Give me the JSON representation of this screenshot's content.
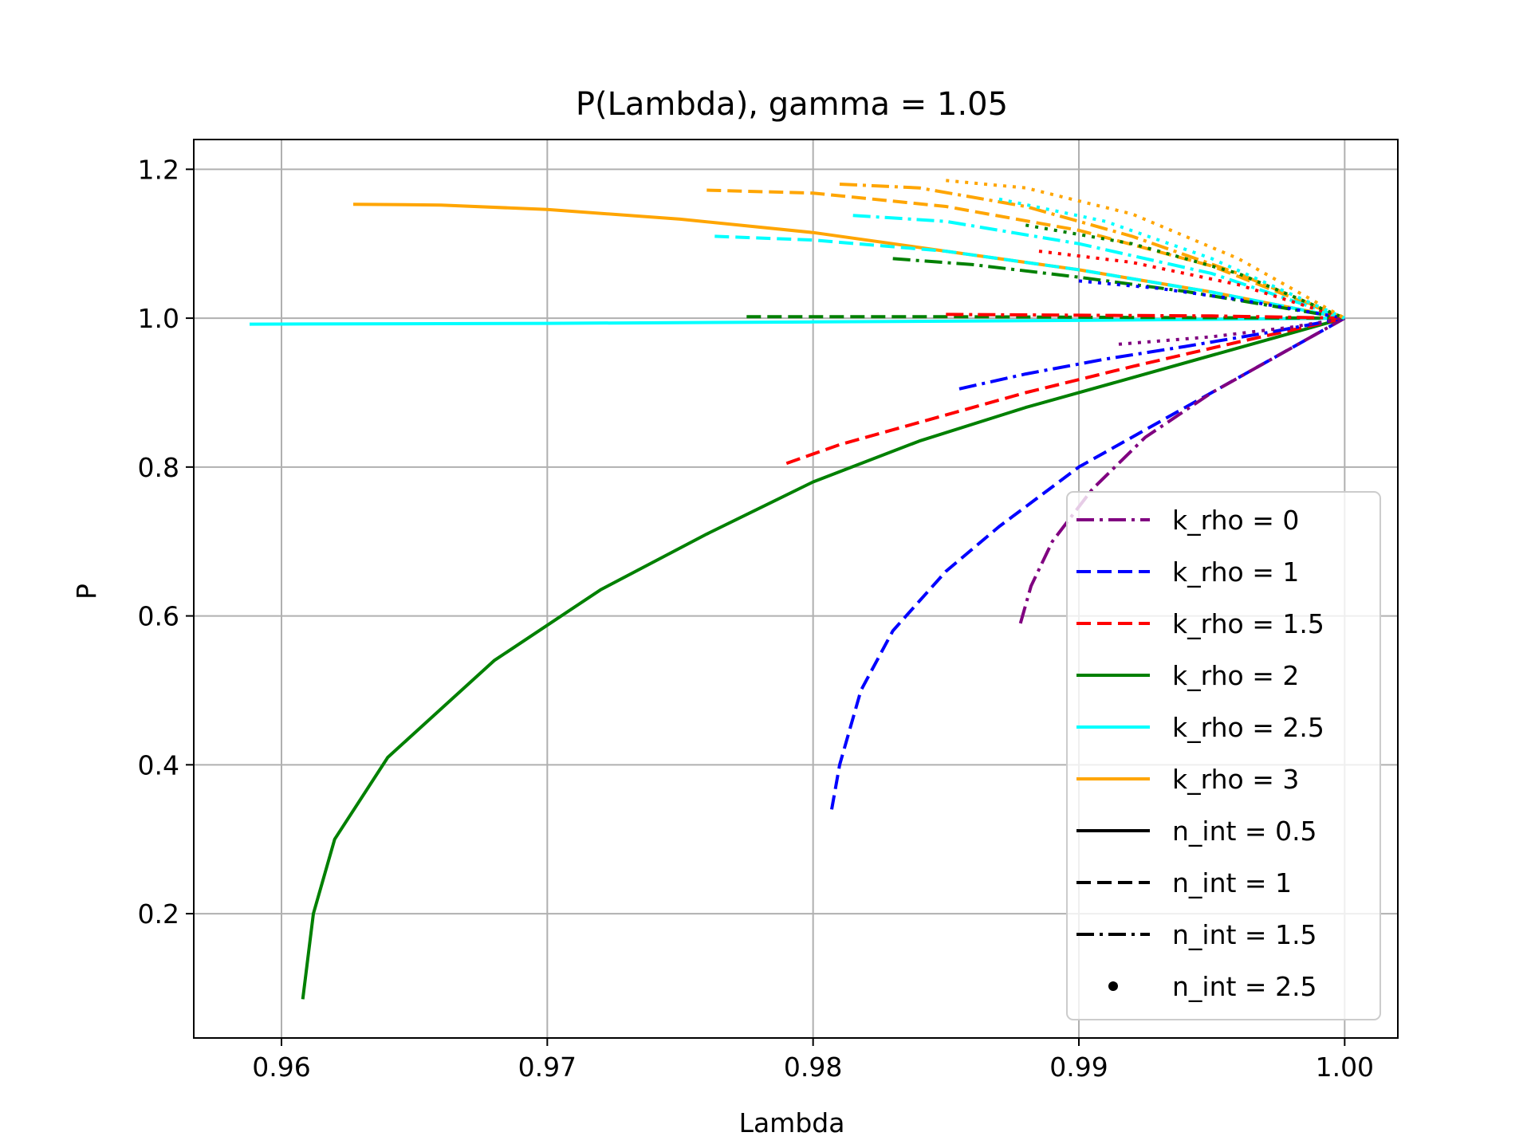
{
  "chart_data": {
    "type": "line",
    "title": "P(Lambda), gamma = 1.05",
    "xlabel": "Lambda",
    "ylabel": "P",
    "xlim": [
      0.9567,
      1.002
    ],
    "ylim": [
      0.033,
      1.24
    ],
    "xticks": [
      0.96,
      0.97,
      0.98,
      0.99,
      1.0
    ],
    "xtick_labels": [
      "0.96",
      "0.97",
      "0.98",
      "0.99",
      "1.00"
    ],
    "yticks": [
      0.2,
      0.4,
      0.6,
      0.8,
      1.0,
      1.2
    ],
    "ytick_labels": [
      "0.2",
      "0.4",
      "0.6",
      "0.8",
      "1.0",
      "1.2"
    ],
    "grid": true,
    "legend_position": "lower-right",
    "legend": [
      {
        "label": "k_rho = 0",
        "color": "#800080",
        "style": "dashdot"
      },
      {
        "label": "k_rho = 1",
        "color": "#0000ff",
        "style": "dashed"
      },
      {
        "label": "k_rho = 1.5",
        "color": "#ff0000",
        "style": "dashed"
      },
      {
        "label": "k_rho = 2",
        "color": "#008000",
        "style": "solid"
      },
      {
        "label": "k_rho = 2.5",
        "color": "#00ffff",
        "style": "solid"
      },
      {
        "label": "k_rho = 3",
        "color": "#ffa500",
        "style": "solid"
      },
      {
        "label": "n_int = 0.5",
        "color": "#000000",
        "style": "solid"
      },
      {
        "label": "n_int = 1",
        "color": "#000000",
        "style": "dashed"
      },
      {
        "label": "n_int = 1.5",
        "color": "#000000",
        "style": "dashdot"
      },
      {
        "label": "n_int = 2.5",
        "color": "#000000",
        "style": "dot"
      }
    ],
    "series": [
      {
        "k_rho": 2,
        "n_int": 0.5,
        "color": "#008000",
        "style": "solid",
        "x": [
          0.9608,
          0.9612,
          0.962,
          0.964,
          0.968,
          0.972,
          0.976,
          0.98,
          0.984,
          0.988,
          0.992,
          0.996,
          1.0
        ],
        "y": [
          0.085,
          0.2,
          0.3,
          0.41,
          0.54,
          0.635,
          0.71,
          0.78,
          0.835,
          0.88,
          0.92,
          0.96,
          1.0
        ]
      },
      {
        "k_rho": 2.5,
        "n_int": 0.5,
        "color": "#00ffff",
        "style": "solid",
        "x": [
          0.9588,
          0.97,
          0.98,
          0.99,
          1.0
        ],
        "y": [
          0.992,
          0.993,
          0.995,
          0.997,
          1.0
        ]
      },
      {
        "k_rho": 3,
        "n_int": 0.5,
        "color": "#ffa500",
        "style": "solid",
        "x": [
          0.9627,
          0.966,
          0.97,
          0.975,
          0.98,
          0.985,
          0.99,
          0.995,
          1.0
        ],
        "y": [
          1.153,
          1.152,
          1.146,
          1.133,
          1.115,
          1.09,
          1.065,
          1.035,
          1.0
        ]
      },
      {
        "k_rho": 1,
        "n_int": 1,
        "color": "#0000ff",
        "style": "dashed",
        "x": [
          0.9807,
          0.981,
          0.9818,
          0.983,
          0.985,
          0.987,
          0.99,
          0.994,
          0.997,
          1.0
        ],
        "y": [
          0.34,
          0.4,
          0.5,
          0.58,
          0.66,
          0.72,
          0.8,
          0.88,
          0.94,
          1.0
        ]
      },
      {
        "k_rho": 1.5,
        "n_int": 1,
        "color": "#ff0000",
        "style": "dashed",
        "x": [
          0.979,
          0.981,
          0.984,
          0.988,
          0.992,
          0.996,
          1.0
        ],
        "y": [
          0.805,
          0.83,
          0.86,
          0.9,
          0.935,
          0.968,
          1.0
        ]
      },
      {
        "k_rho": 2,
        "n_int": 1,
        "color": "#008000",
        "style": "dashed",
        "x": [
          0.9775,
          0.985,
          0.992,
          1.0
        ],
        "y": [
          1.002,
          1.002,
          1.001,
          1.0
        ]
      },
      {
        "k_rho": 2.5,
        "n_int": 1,
        "color": "#00ffff",
        "style": "dashed",
        "x": [
          0.9763,
          0.98,
          0.985,
          0.99,
          0.995,
          1.0
        ],
        "y": [
          1.11,
          1.105,
          1.09,
          1.065,
          1.035,
          1.0
        ]
      },
      {
        "k_rho": 3,
        "n_int": 1,
        "color": "#ffa500",
        "style": "dashed",
        "x": [
          0.976,
          0.98,
          0.985,
          0.99,
          0.995,
          1.0
        ],
        "y": [
          1.172,
          1.168,
          1.15,
          1.118,
          1.07,
          1.0
        ]
      },
      {
        "k_rho": 0,
        "n_int": 1.5,
        "color": "#800080",
        "style": "dashdot",
        "x": [
          0.9878,
          0.9882,
          0.989,
          0.9905,
          0.9925,
          0.995,
          0.9975,
          1.0
        ],
        "y": [
          0.59,
          0.64,
          0.7,
          0.77,
          0.84,
          0.9,
          0.95,
          1.0
        ]
      },
      {
        "k_rho": 1,
        "n_int": 1.5,
        "color": "#0000ff",
        "style": "dashdot",
        "x": [
          0.9855,
          0.988,
          0.991,
          0.994,
          0.997,
          1.0
        ],
        "y": [
          0.905,
          0.925,
          0.945,
          0.962,
          0.98,
          1.0
        ]
      },
      {
        "k_rho": 1.5,
        "n_int": 1.5,
        "color": "#ff0000",
        "style": "dashdot",
        "x": [
          0.985,
          0.99,
          0.995,
          1.0
        ],
        "y": [
          1.005,
          1.004,
          1.003,
          1.0
        ]
      },
      {
        "k_rho": 2,
        "n_int": 1.5,
        "color": "#008000",
        "style": "dashdot",
        "x": [
          0.983,
          0.986,
          0.99,
          0.994,
          0.997,
          1.0
        ],
        "y": [
          1.08,
          1.072,
          1.055,
          1.036,
          1.018,
          1.0
        ]
      },
      {
        "k_rho": 2.5,
        "n_int": 1.5,
        "color": "#00ffff",
        "style": "dashdot",
        "x": [
          0.9815,
          0.985,
          0.99,
          0.995,
          1.0
        ],
        "y": [
          1.138,
          1.13,
          1.1,
          1.06,
          1.0
        ]
      },
      {
        "k_rho": 3,
        "n_int": 1.5,
        "color": "#ffa500",
        "style": "dashdot",
        "x": [
          0.981,
          0.984,
          0.988,
          0.992,
          0.996,
          1.0
        ],
        "y": [
          1.18,
          1.175,
          1.15,
          1.11,
          1.06,
          1.0
        ]
      },
      {
        "k_rho": 0,
        "n_int": 2.5,
        "color": "#800080",
        "style": "dot",
        "x": [
          0.9915,
          0.995,
          0.998,
          1.0
        ],
        "y": [
          0.965,
          0.975,
          0.988,
          1.0
        ]
      },
      {
        "k_rho": 1,
        "n_int": 2.5,
        "color": "#0000ff",
        "style": "dot",
        "x": [
          0.99,
          0.993,
          0.996,
          1.0
        ],
        "y": [
          1.05,
          1.04,
          1.025,
          1.0
        ]
      },
      {
        "k_rho": 1.5,
        "n_int": 2.5,
        "color": "#ff0000",
        "style": "dot",
        "x": [
          0.9885,
          0.992,
          0.996,
          1.0
        ],
        "y": [
          1.09,
          1.075,
          1.045,
          1.0
        ]
      },
      {
        "k_rho": 2,
        "n_int": 2.5,
        "color": "#008000",
        "style": "dot",
        "x": [
          0.988,
          0.992,
          0.996,
          1.0
        ],
        "y": [
          1.125,
          1.1,
          1.06,
          1.0
        ]
      },
      {
        "k_rho": 2.5,
        "n_int": 2.5,
        "color": "#00ffff",
        "style": "dot",
        "x": [
          0.987,
          0.991,
          0.995,
          1.0
        ],
        "y": [
          1.16,
          1.13,
          1.08,
          1.0
        ]
      },
      {
        "k_rho": 3,
        "n_int": 2.5,
        "color": "#ffa500",
        "style": "dot",
        "x": [
          0.985,
          0.988,
          0.992,
          0.996,
          1.0
        ],
        "y": [
          1.185,
          1.175,
          1.14,
          1.08,
          1.0
        ]
      }
    ]
  }
}
